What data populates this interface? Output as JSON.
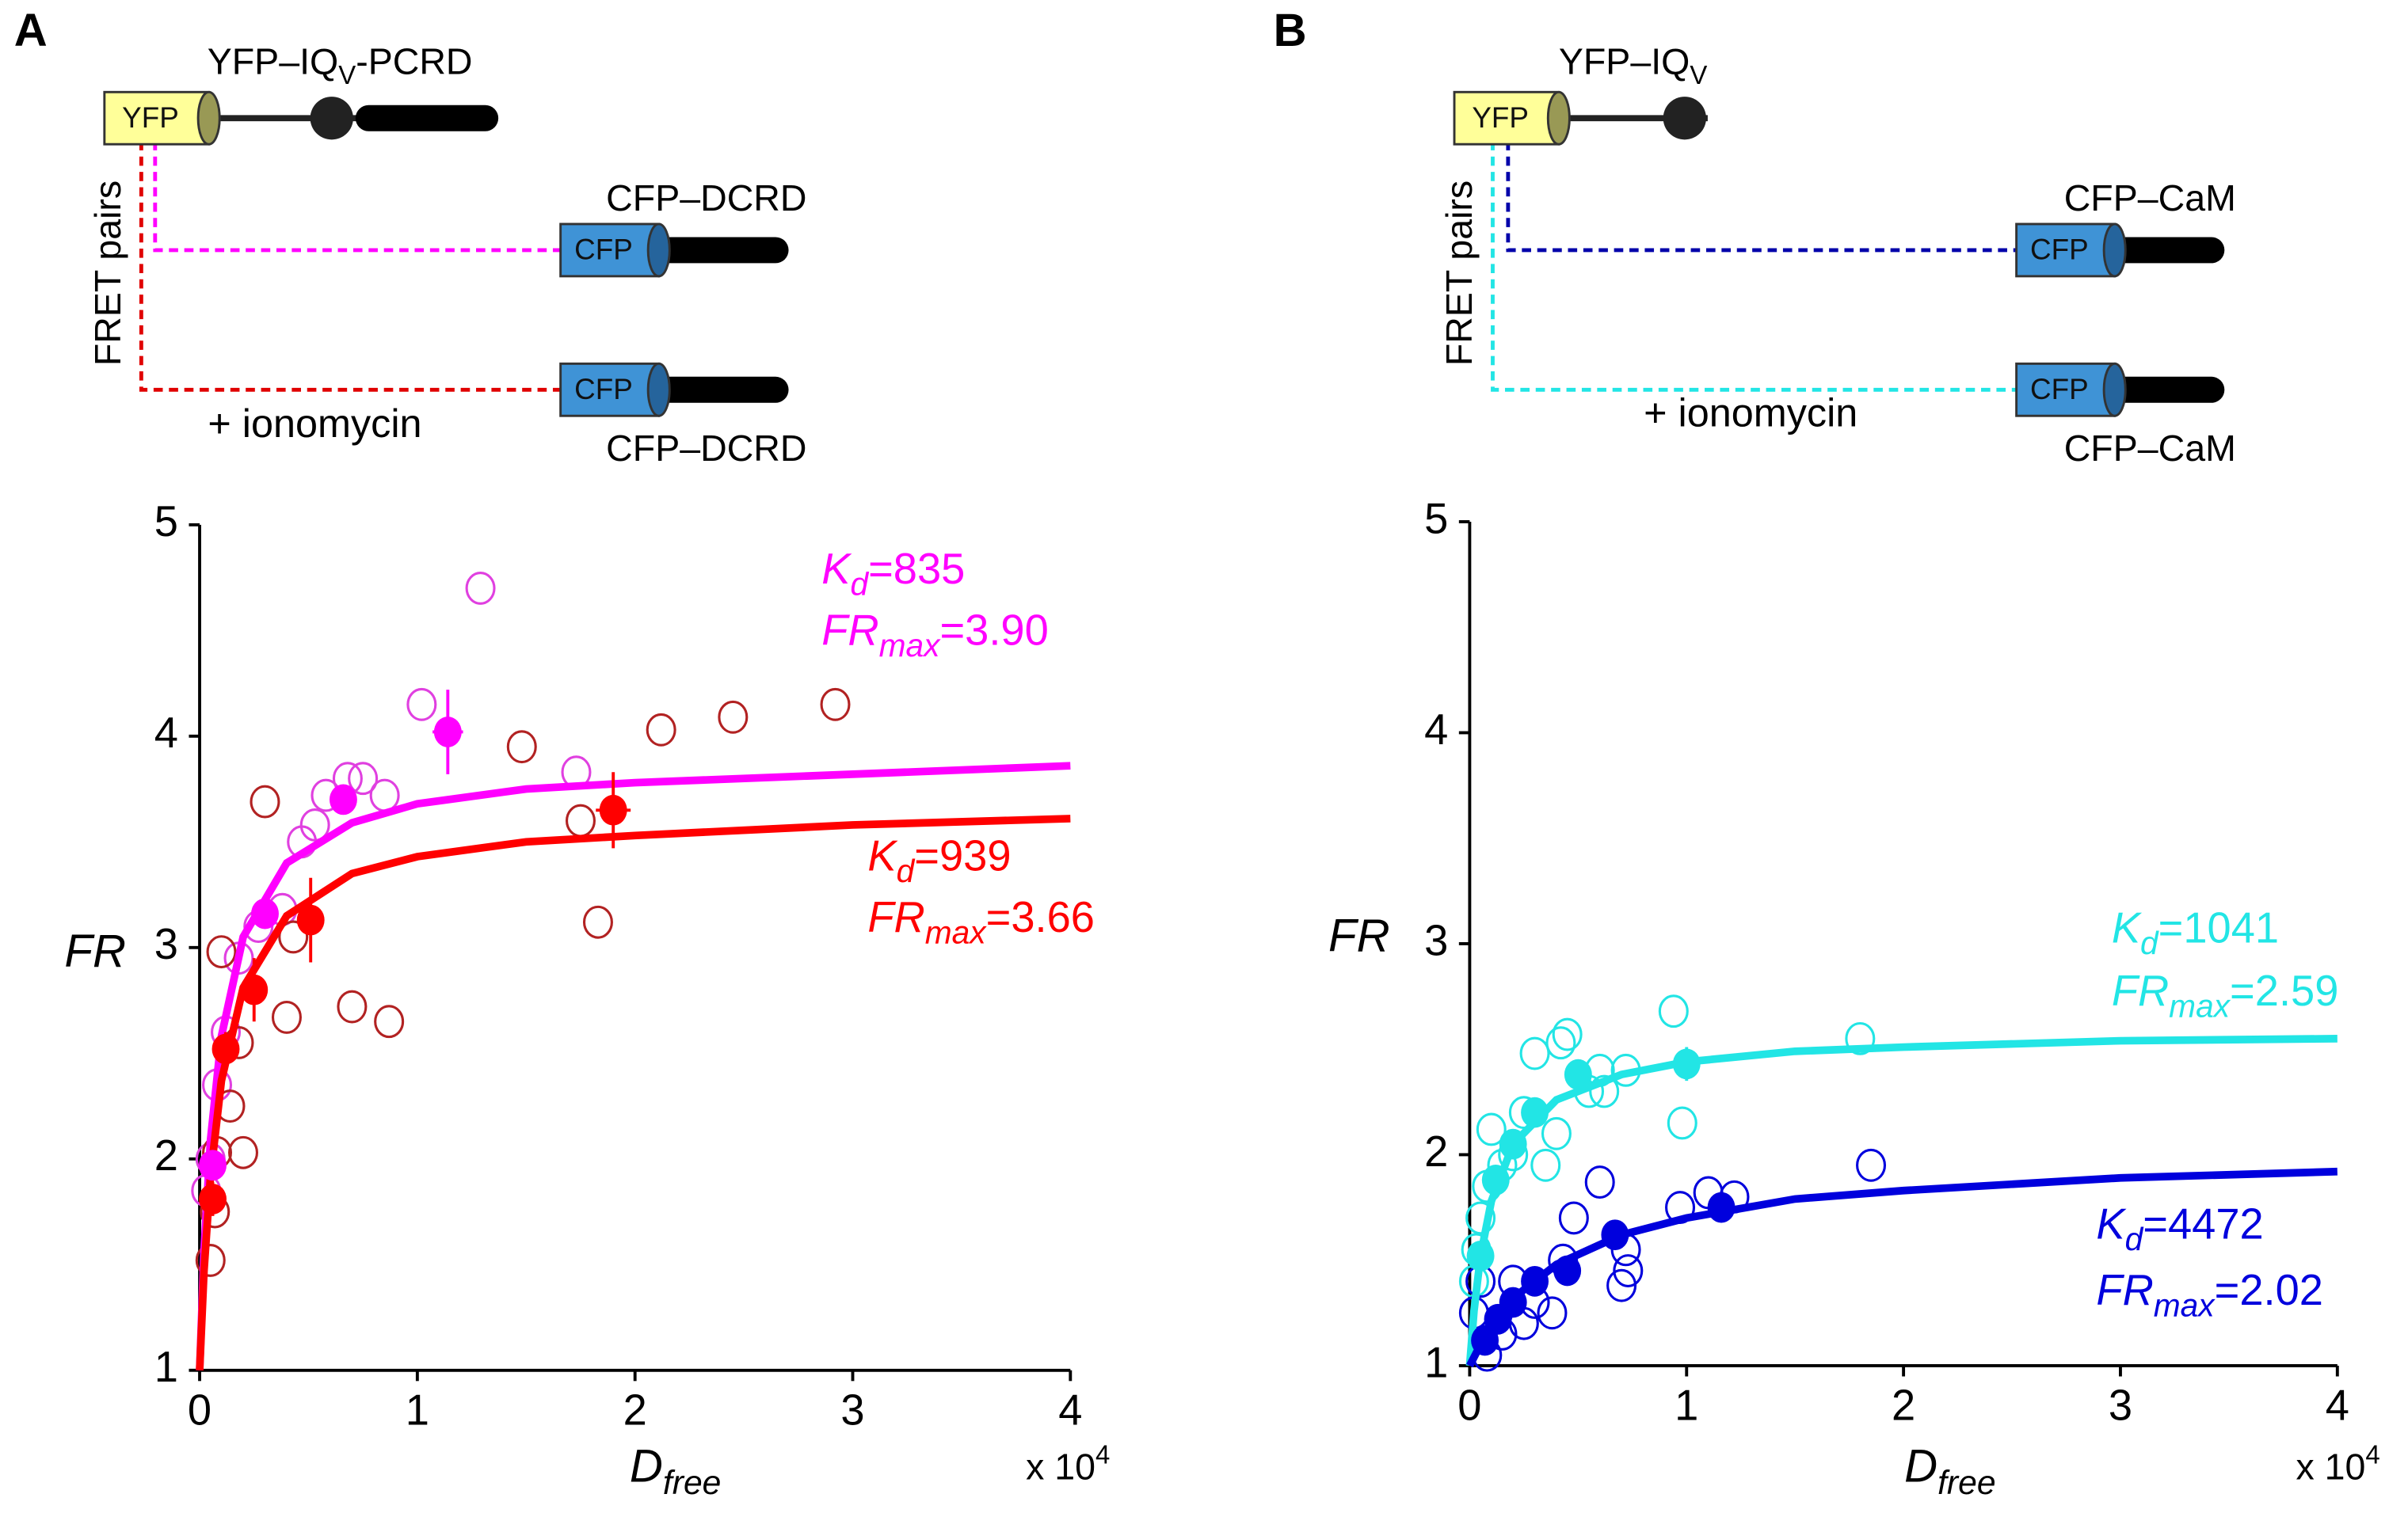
{
  "chart_data": [
    {
      "type": "scatter",
      "panel": "A",
      "diagram": {
        "yfp": "YFP",
        "construct": "YFP–IQ",
        "construct_sub": "V",
        "construct_rest": "-PCRD",
        "pairs_label": "FRET pairs",
        "cfp": [
          "CFP",
          "CFP"
        ],
        "partners": [
          "CFP–DCRD",
          "CFP–DCRD"
        ],
        "treatment": "+ ionomycin",
        "link_colors": [
          "#ff00ff",
          "#e00000"
        ]
      },
      "ylabel": "FR",
      "xlabel": "D",
      "xlabel_sub": "free",
      "x_multiplier": "x 10",
      "x_multiplier_exp": "4",
      "xlim": [
        0,
        4
      ],
      "ylim": [
        1,
        5
      ],
      "xticks": [
        0,
        1,
        2,
        3,
        4
      ],
      "yticks": [
        1,
        2,
        3,
        4,
        5
      ],
      "series": [
        {
          "style": "open",
          "color": "#e040e0",
          "x": [
            1.29,
            1.02,
            0.53,
            0.58,
            0.68,
            0.75,
            0.85,
            0.47,
            0.38,
            0.27,
            0.18,
            0.12,
            0.08,
            0.05,
            0.03,
            1.73
          ],
          "values": [
            4.7,
            4.15,
            3.58,
            3.72,
            3.8,
            3.8,
            3.72,
            3.5,
            3.18,
            3.1,
            2.95,
            2.6,
            2.35,
            2.0,
            1.85,
            3.83
          ]
        },
        {
          "style": "open",
          "color": "#b22222",
          "x": [
            2.92,
            2.45,
            2.12,
            1.48,
            1.75,
            1.83,
            0.7,
            0.87,
            0.4,
            0.3,
            0.43,
            0.1,
            0.18,
            0.14,
            0.08,
            0.05,
            0.07,
            0.2
          ],
          "values": [
            4.15,
            4.09,
            4.03,
            3.95,
            3.6,
            3.12,
            2.72,
            2.65,
            2.67,
            3.69,
            3.05,
            2.98,
            2.55,
            2.25,
            2.03,
            1.52,
            1.75,
            2.03
          ]
        },
        {
          "style": "line",
          "color": "#ff00ff",
          "x": [
            0,
            0.02,
            0.05,
            0.1,
            0.2,
            0.4,
            0.7,
            1,
            1.5,
            2,
            3,
            4
          ],
          "values": [
            1,
            1.56,
            2.09,
            2.58,
            3.05,
            3.4,
            3.59,
            3.68,
            3.75,
            3.78,
            3.82,
            3.86
          ]
        },
        {
          "style": "line",
          "color": "#ff0000",
          "x": [
            0,
            0.02,
            0.05,
            0.1,
            0.2,
            0.4,
            0.7,
            1,
            1.5,
            2,
            3,
            4
          ],
          "values": [
            1,
            1.47,
            1.92,
            2.37,
            2.81,
            3.15,
            3.35,
            3.43,
            3.5,
            3.53,
            3.58,
            3.61
          ]
        },
        {
          "style": "filled",
          "color": "#ff00ff",
          "x": [
            1.14,
            0.66,
            0.3,
            0.06
          ],
          "values": [
            4.02,
            3.7,
            3.16,
            1.97
          ],
          "yerr": [
            0.2,
            0.05,
            0.05,
            0.06
          ],
          "xerr": [
            0.07,
            null,
            null,
            null
          ]
        },
        {
          "style": "filled",
          "color": "#ff0000",
          "x": [
            1.9,
            0.51,
            0.25,
            0.12,
            0.06
          ],
          "values": [
            3.65,
            3.13,
            2.8,
            2.52,
            1.81
          ],
          "yerr": [
            0.18,
            0.2,
            0.15,
            0.08,
            0.08
          ],
          "xerr": [
            0.08,
            null,
            null,
            null,
            null
          ]
        }
      ],
      "annotations": [
        {
          "color": "#ff00ff",
          "text": "K",
          "sub": "d",
          "rest": "=835"
        },
        {
          "color": "#ff00ff",
          "text": "FR",
          "sub": "max",
          "rest": "=3.90"
        },
        {
          "color": "#ff0000",
          "text": "K",
          "sub": "d",
          "rest": "=939"
        },
        {
          "color": "#ff0000",
          "text": "FR",
          "sub": "max",
          "rest": "=3.66"
        }
      ]
    },
    {
      "type": "scatter",
      "panel": "B",
      "diagram": {
        "yfp": "YFP",
        "construct": "YFP–IQ",
        "construct_sub": "V",
        "pairs_label": "FRET pairs",
        "cfp": [
          "CFP",
          "CFP"
        ],
        "partners": [
          "CFP–CaM",
          "CFP–CaM"
        ],
        "treatment": "+ ionomycin",
        "link_colors": [
          "#0000aa",
          "#22e5e5"
        ]
      },
      "ylabel": "FR",
      "xlabel": "D",
      "xlabel_sub": "free",
      "x_multiplier": "x 10",
      "x_multiplier_exp": "4",
      "xlim": [
        0,
        4
      ],
      "ylim": [
        1,
        5
      ],
      "xticks": [
        0,
        1,
        2,
        3,
        4
      ],
      "yticks": [
        1,
        2,
        3,
        4,
        5
      ],
      "series": [
        {
          "style": "open",
          "color": "#22e5e5",
          "x": [
            0.94,
            1.8,
            0.98,
            0.45,
            0.42,
            0.3,
            0.6,
            0.72,
            0.55,
            0.4,
            0.25,
            0.2,
            0.15,
            0.1,
            0.08,
            0.05,
            0.03,
            0.02,
            0.35,
            0.62
          ],
          "values": [
            2.68,
            2.55,
            2.15,
            2.57,
            2.53,
            2.48,
            2.4,
            2.4,
            2.3,
            2.1,
            2.2,
            2.0,
            1.95,
            2.12,
            1.85,
            1.7,
            1.55,
            1.4,
            1.95,
            2.3
          ]
        },
        {
          "style": "open",
          "color": "#0000dd",
          "x": [
            1.85,
            1.22,
            1.1,
            0.97,
            0.6,
            0.72,
            0.73,
            0.7,
            0.48,
            0.38,
            0.3,
            0.2,
            0.15,
            0.08,
            0.25,
            0.43,
            0.05,
            0.02
          ],
          "values": [
            1.95,
            1.8,
            1.82,
            1.75,
            1.87,
            1.55,
            1.45,
            1.38,
            1.7,
            1.25,
            1.3,
            1.4,
            1.15,
            1.05,
            1.2,
            1.5,
            1.4,
            1.25
          ]
        },
        {
          "style": "line",
          "color": "#22e5e5",
          "x": [
            0,
            0.02,
            0.05,
            0.1,
            0.2,
            0.4,
            0.7,
            1,
            1.5,
            2,
            3,
            4
          ],
          "values": [
            1,
            1.26,
            1.52,
            1.78,
            2.05,
            2.26,
            2.38,
            2.44,
            2.49,
            2.51,
            2.54,
            2.55
          ]
        },
        {
          "style": "line",
          "color": "#0000dd",
          "x": [
            0,
            0.05,
            0.1,
            0.2,
            0.4,
            0.7,
            1,
            1.5,
            2,
            3,
            4
          ],
          "values": [
            1,
            1.1,
            1.19,
            1.32,
            1.48,
            1.62,
            1.7,
            1.79,
            1.83,
            1.89,
            1.92
          ]
        },
        {
          "style": "filled",
          "color": "#22e5e5",
          "x": [
            1.0,
            0.5,
            0.3,
            0.2,
            0.12,
            0.05
          ],
          "values": [
            2.43,
            2.38,
            2.2,
            2.05,
            1.88,
            1.52
          ],
          "yerr": [
            0.08,
            0.04,
            0.04,
            0.04,
            0.04,
            0.04
          ]
        },
        {
          "style": "filled",
          "color": "#0000dd",
          "x": [
            1.16,
            0.67,
            0.45,
            0.3,
            0.2,
            0.13,
            0.07
          ],
          "values": [
            1.75,
            1.62,
            1.45,
            1.4,
            1.3,
            1.22,
            1.12
          ],
          "yerr": [
            0.05,
            0.04,
            0.04,
            0.04,
            0.04,
            0.04,
            0.04
          ]
        }
      ],
      "annotations": [
        {
          "color": "#22e5e5",
          "text": "K",
          "sub": "d",
          "rest": "=1041"
        },
        {
          "color": "#22e5e5",
          "text": "FR",
          "sub": "max",
          "rest": "=2.59"
        },
        {
          "color": "#0000dd",
          "text": "K",
          "sub": "d",
          "rest": "=4472"
        },
        {
          "color": "#0000dd",
          "text": "FR",
          "sub": "max",
          "rest": "=2.02"
        }
      ]
    }
  ]
}
